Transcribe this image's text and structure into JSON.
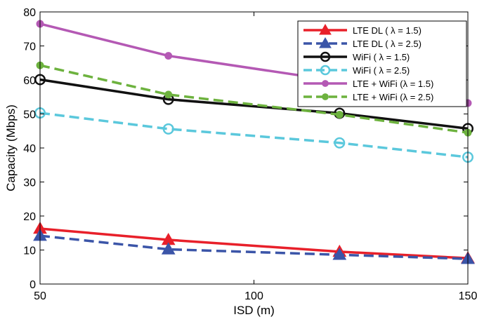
{
  "chart_data": {
    "type": "line",
    "title": "",
    "xlabel": "ISD (m)",
    "ylabel": "Capacity (Mbps)",
    "xlim": [
      50,
      150
    ],
    "ylim": [
      0,
      80
    ],
    "xticks": [
      50,
      100,
      150
    ],
    "yticks": [
      0,
      10,
      20,
      30,
      40,
      50,
      60,
      70,
      80
    ],
    "grid": false,
    "legend_position": "top-right",
    "series": [
      {
        "name": "LTE DL ( λ = 1.5)",
        "x": [
          50,
          80,
          120,
          150
        ],
        "y": [
          16.3,
          13.0,
          9.5,
          7.6
        ],
        "color": "#e8202a",
        "dash": "solid",
        "marker": "triangle-filled"
      },
      {
        "name": "LTE DL ( λ = 2.5)",
        "x": [
          50,
          80,
          120,
          150
        ],
        "y": [
          14.2,
          10.2,
          8.6,
          7.4
        ],
        "color": "#3b55a8",
        "dash": "dashed",
        "marker": "triangle-filled"
      },
      {
        "name": "WiFi ( λ = 1.5)",
        "x": [
          50,
          80,
          120,
          150
        ],
        "y": [
          60.1,
          54.3,
          50.2,
          45.7
        ],
        "color": "#111111",
        "dash": "solid",
        "marker": "circle-open"
      },
      {
        "name": "WiFi ( λ = 2.5)",
        "x": [
          50,
          80,
          120,
          150
        ],
        "y": [
          50.3,
          45.6,
          41.5,
          37.3
        ],
        "color": "#5bc8dc",
        "dash": "dashed",
        "marker": "circle-open"
      },
      {
        "name": "LTE + WiFi (λ = 1.5)",
        "x": [
          50,
          80,
          120,
          150
        ],
        "y": [
          76.5,
          67.1,
          59.6,
          53.2
        ],
        "color": "#b459b4",
        "dash": "solid",
        "marker": "circle-filled"
      },
      {
        "name": "LTE + WiFi (λ = 2.5)",
        "x": [
          50,
          80,
          120,
          150
        ],
        "y": [
          64.3,
          55.7,
          49.8,
          44.5
        ],
        "color": "#6db23e",
        "dash": "dashed",
        "marker": "circle-filled"
      }
    ]
  }
}
